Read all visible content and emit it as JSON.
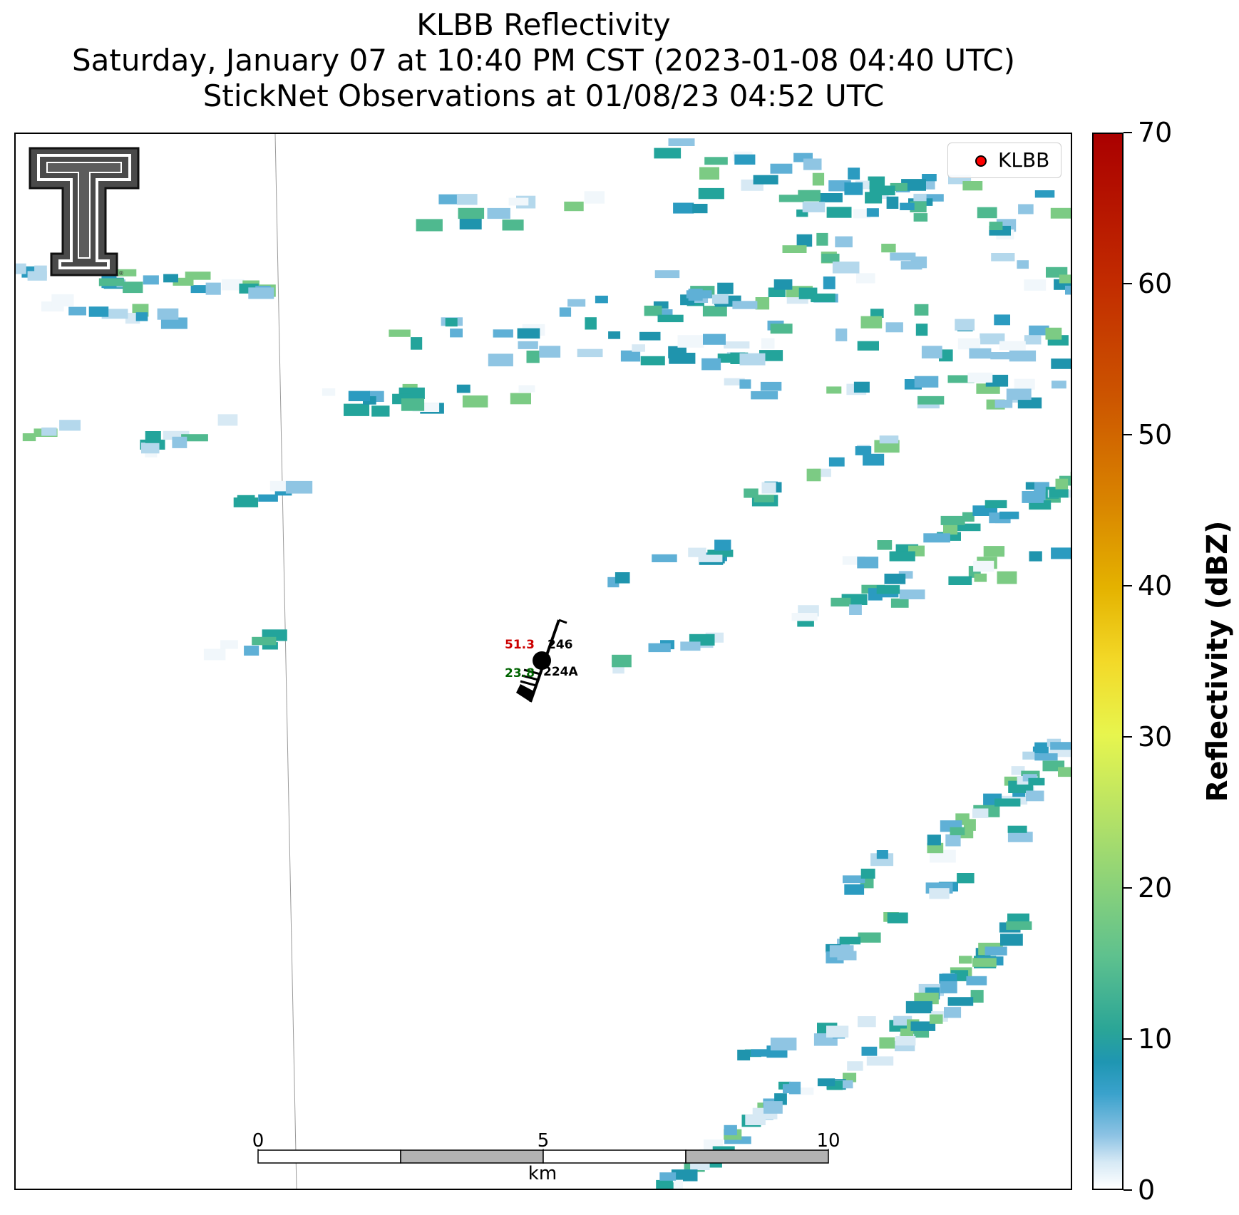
{
  "title": {
    "line1": "KLBB Reflectivity",
    "line2": "Saturday, January 07 at 10:40 PM CST (2023-01-08 04:40 UTC)",
    "line3": "StickNet Observations at 01/08/23 04:52 UTC"
  },
  "legend": {
    "label": "KLBB",
    "marker_color": "#ff0000"
  },
  "colorbar": {
    "label": "Reflectivity (dBZ)",
    "ticks": [
      "0",
      "10",
      "20",
      "30",
      "40",
      "50",
      "60",
      "70"
    ],
    "range": [
      0,
      70
    ]
  },
  "station": {
    "temperature": "51.3",
    "dewpoint": "23.8",
    "pressure_code": "246",
    "station_id": "224A",
    "temperature_color": "#cc0000",
    "dewpoint_color": "#006400"
  },
  "scale_bar": {
    "ticks": [
      "0",
      "5",
      "10"
    ],
    "unit": "km"
  },
  "logo": {
    "name": "texas-tech-double-t-logo"
  },
  "colors": {
    "boundary": "#9a9a9a",
    "scale_dark": "#b3b3b3",
    "scale_light": "#ffffff"
  }
}
